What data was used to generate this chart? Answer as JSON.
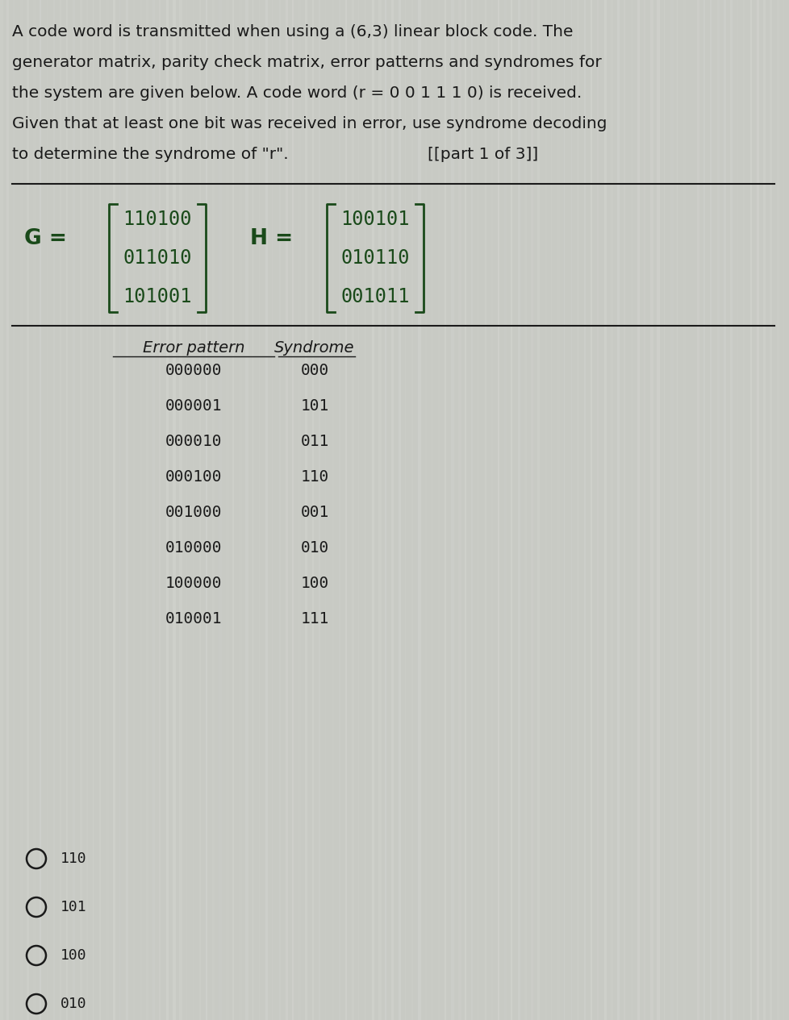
{
  "bg_color": "#c8cac4",
  "text_color": "#1a1a1a",
  "matrix_color": "#1a4a1a",
  "paragraph": [
    "A code word is transmitted when using a (6,3) linear block code. The",
    "generator matrix, parity check matrix, error patterns and syndromes for",
    "the system are given below. A code word (r = 0 0 1 1 1 0) is received.",
    "Given that at least one bit was received in error, use syndrome decoding",
    "to determine the syndrome of \"r\"."
  ],
  "part_label": "[[part 1 of 3]]",
  "G_rows": [
    "110100",
    "011010",
    "101001"
  ],
  "H_rows": [
    "100101",
    "010110",
    "001011"
  ],
  "table_header": [
    "Error pattern",
    "Syndrome"
  ],
  "error_patterns": [
    "000000",
    "000001",
    "000010",
    "000100",
    "001000",
    "010000",
    "100000",
    "010001"
  ],
  "syndromes": [
    "000",
    "101",
    "011",
    "110",
    "001",
    "010",
    "100",
    "111"
  ],
  "options": [
    "110",
    "101",
    "100",
    "010"
  ],
  "font_size_para": 14.5,
  "font_size_matrix": 17,
  "font_size_table_header": 14,
  "font_size_table_data": 14,
  "font_size_options": 13,
  "stripe_color": "#d4d6d0",
  "stripe_color2": "#bcbeb8"
}
